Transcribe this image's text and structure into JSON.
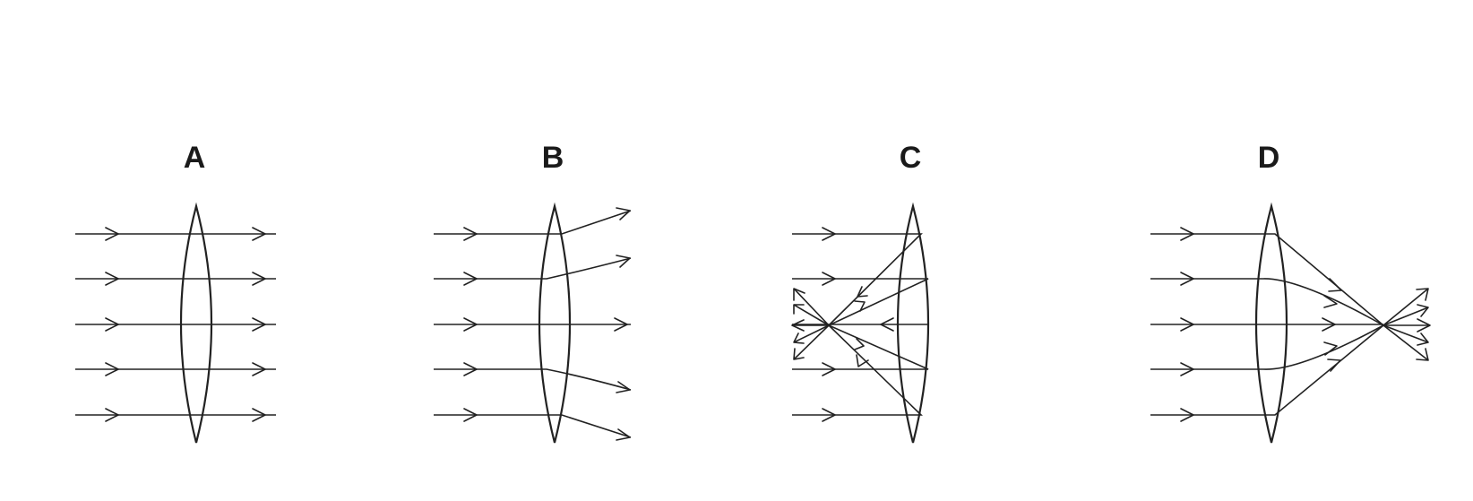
{
  "panels": [
    {
      "id": "A",
      "label": "A"
    },
    {
      "id": "B",
      "label": "B"
    },
    {
      "id": "C",
      "label": "C"
    },
    {
      "id": "D",
      "label": "D"
    }
  ],
  "colors": {
    "line": "#222222",
    "label": "#1a1a1a",
    "background": "#ffffff"
  }
}
